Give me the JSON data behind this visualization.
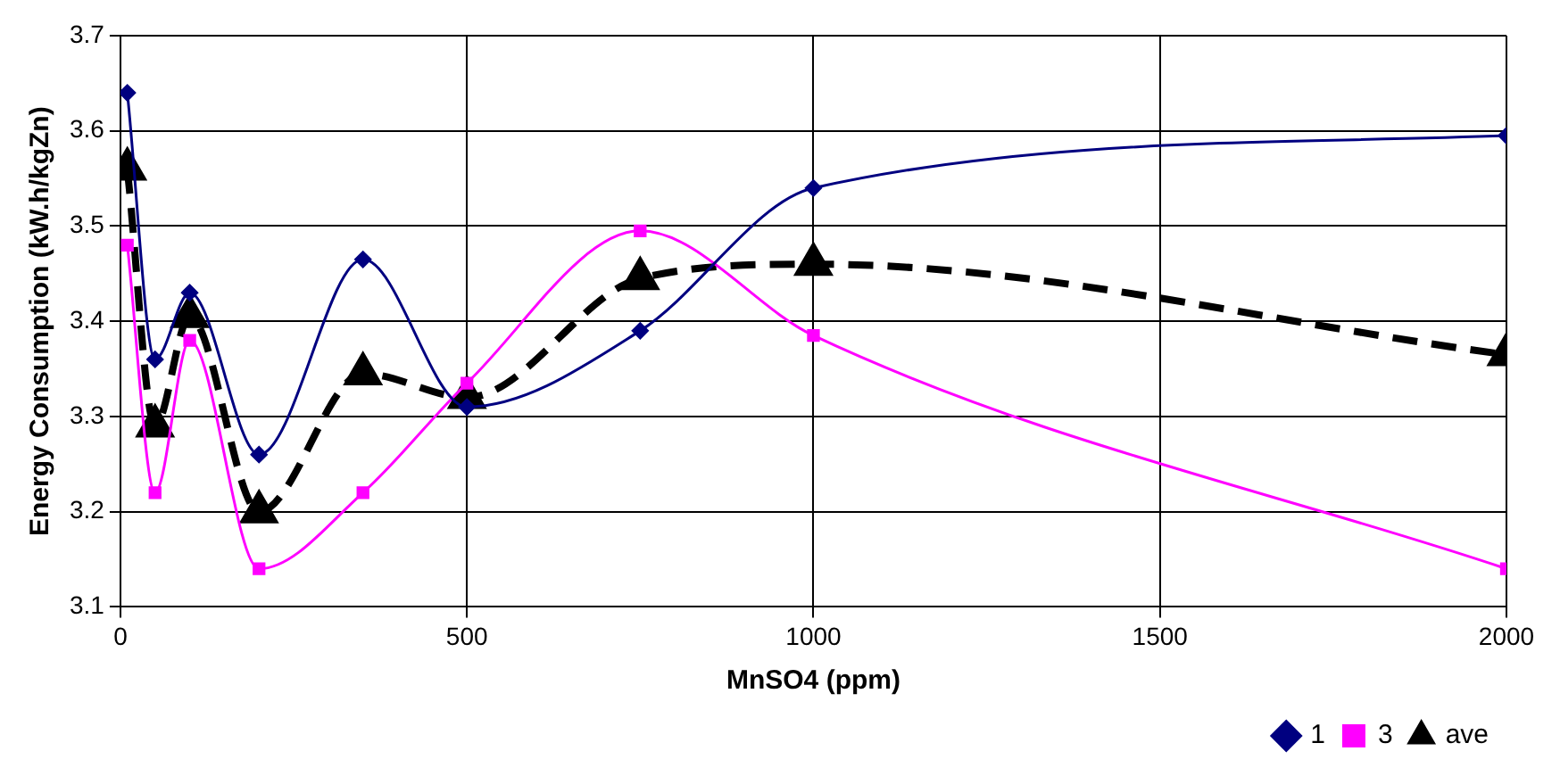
{
  "chart_data": {
    "type": "line",
    "xlabel": "MnSO4 (ppm)",
    "ylabel": "Energy Consumption (kW.h/kgZn)",
    "x": [
      10,
      50,
      100,
      200,
      350,
      500,
      750,
      1000,
      2000
    ],
    "series": [
      {
        "name": "1",
        "color": "#000080",
        "marker": "diamond",
        "line_style": "solid",
        "values": [
          3.64,
          3.36,
          3.43,
          3.26,
          3.465,
          3.31,
          3.39,
          3.54,
          3.595
        ]
      },
      {
        "name": "3",
        "color": "#ff00ff",
        "marker": "square",
        "line_style": "solid",
        "values": [
          3.48,
          3.22,
          3.38,
          3.14,
          3.22,
          3.335,
          3.495,
          3.385,
          3.14
        ]
      },
      {
        "name": "ave",
        "color": "#000000",
        "marker": "triangle",
        "line_style": "dashed",
        "values": [
          3.56,
          3.29,
          3.405,
          3.2,
          3.345,
          3.32,
          3.445,
          3.46,
          3.365
        ]
      }
    ],
    "xlim": [
      0,
      2000
    ],
    "xticks": [
      0,
      500,
      1000,
      1500,
      2000
    ],
    "ylim": [
      3.1,
      3.7
    ],
    "yticks": [
      3.1,
      3.2,
      3.3,
      3.4,
      3.5,
      3.6,
      3.7
    ],
    "grid": true,
    "legend": "bottom right"
  }
}
